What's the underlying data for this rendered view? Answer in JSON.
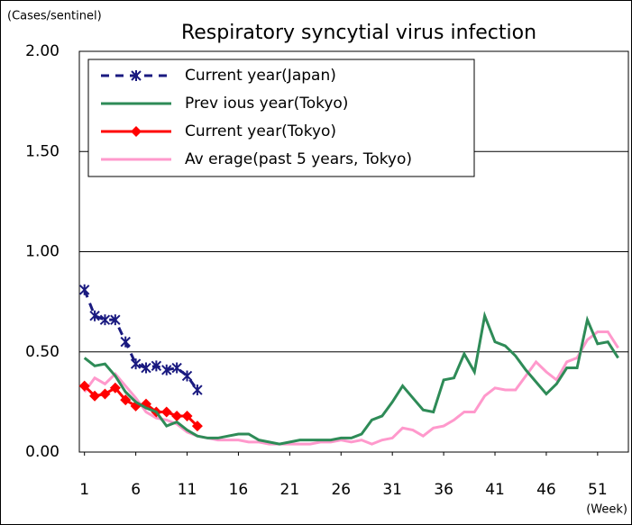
{
  "chart_data": {
    "type": "line",
    "title": "Respiratory syncytial virus infection",
    "y_label": "(Cases/sentinel)",
    "x_label": "(Week)",
    "x": [
      1,
      2,
      3,
      4,
      5,
      6,
      7,
      8,
      9,
      10,
      11,
      12,
      13,
      14,
      15,
      16,
      17,
      18,
      19,
      20,
      21,
      22,
      23,
      24,
      25,
      26,
      27,
      28,
      29,
      30,
      31,
      32,
      33,
      34,
      35,
      36,
      37,
      38,
      39,
      40,
      41,
      42,
      43,
      44,
      45,
      46,
      47,
      48,
      49,
      50,
      51,
      52,
      53
    ],
    "xlim": [
      0.5,
      54
    ],
    "xticks": [
      1,
      6,
      11,
      16,
      21,
      26,
      31,
      36,
      41,
      46,
      51
    ],
    "ylim": [
      0,
      2
    ],
    "yticks": [
      {
        "value": 0,
        "label": "0.00"
      },
      {
        "value": 0.5,
        "label": "0.50"
      },
      {
        "value": 1,
        "label": "1.00"
      },
      {
        "value": 1.5,
        "label": "1.50"
      },
      {
        "value": 2,
        "label": "2.00"
      }
    ],
    "grid": true,
    "legend": "upper left",
    "series": [
      {
        "name": "Current year(Japan)",
        "color": "#1a1a80",
        "dash": true,
        "marker": "asterisk",
        "values": [
          0.81,
          0.68,
          0.66,
          0.66,
          0.55,
          0.44,
          0.42,
          0.43,
          0.41,
          0.42,
          0.38,
          0.31,
          null,
          null,
          null,
          null,
          null,
          null,
          null,
          null,
          null,
          null,
          null,
          null,
          null,
          null,
          null,
          null,
          null,
          null,
          null,
          null,
          null,
          null,
          null,
          null,
          null,
          null,
          null,
          null,
          null,
          null,
          null,
          null,
          null,
          null,
          null,
          null,
          null,
          null,
          null,
          null,
          null
        ]
      },
      {
        "name": "Prev ious year(Tokyo)",
        "color": "#2e8b57",
        "dash": false,
        "marker": "none",
        "values": [
          0.47,
          0.43,
          0.44,
          0.38,
          0.3,
          0.25,
          0.22,
          0.2,
          0.13,
          0.15,
          0.11,
          0.08,
          0.07,
          0.07,
          0.08,
          0.09,
          0.09,
          0.06,
          0.05,
          0.04,
          0.05,
          0.06,
          0.06,
          0.06,
          0.06,
          0.07,
          0.07,
          0.09,
          0.16,
          0.18,
          0.25,
          0.33,
          0.27,
          0.21,
          0.2,
          0.36,
          0.37,
          0.49,
          0.4,
          0.68,
          0.55,
          0.53,
          0.48,
          0.41,
          0.35,
          0.29,
          0.34,
          0.42,
          0.42,
          0.66,
          0.54,
          0.55,
          0.47
        ]
      },
      {
        "name": "Current year(Tokyo)",
        "color": "#ff0000",
        "dash": false,
        "marker": "diamond",
        "values": [
          0.33,
          0.28,
          0.29,
          0.32,
          0.26,
          0.23,
          0.24,
          0.2,
          0.2,
          0.18,
          0.18,
          0.13,
          null,
          null,
          null,
          null,
          null,
          null,
          null,
          null,
          null,
          null,
          null,
          null,
          null,
          null,
          null,
          null,
          null,
          null,
          null,
          null,
          null,
          null,
          null,
          null,
          null,
          null,
          null,
          null,
          null,
          null,
          null,
          null,
          null,
          null,
          null,
          null,
          null,
          null,
          null,
          null,
          null
        ]
      },
      {
        "name": "Av erage(past 5 years, Tokyo)",
        "color": "#ff99cc",
        "dash": false,
        "marker": "none",
        "values": [
          0.3,
          0.37,
          0.34,
          0.39,
          0.33,
          0.27,
          0.2,
          0.17,
          0.16,
          0.14,
          0.1,
          0.08,
          0.07,
          0.06,
          0.06,
          0.06,
          0.05,
          0.05,
          0.04,
          0.04,
          0.04,
          0.04,
          0.04,
          0.05,
          0.05,
          0.06,
          0.05,
          0.06,
          0.04,
          0.06,
          0.07,
          0.12,
          0.11,
          0.08,
          0.12,
          0.13,
          0.16,
          0.2,
          0.2,
          0.28,
          0.32,
          0.31,
          0.31,
          0.38,
          0.45,
          0.4,
          0.36,
          0.45,
          0.47,
          0.56,
          0.6,
          0.6,
          0.52
        ]
      }
    ]
  }
}
